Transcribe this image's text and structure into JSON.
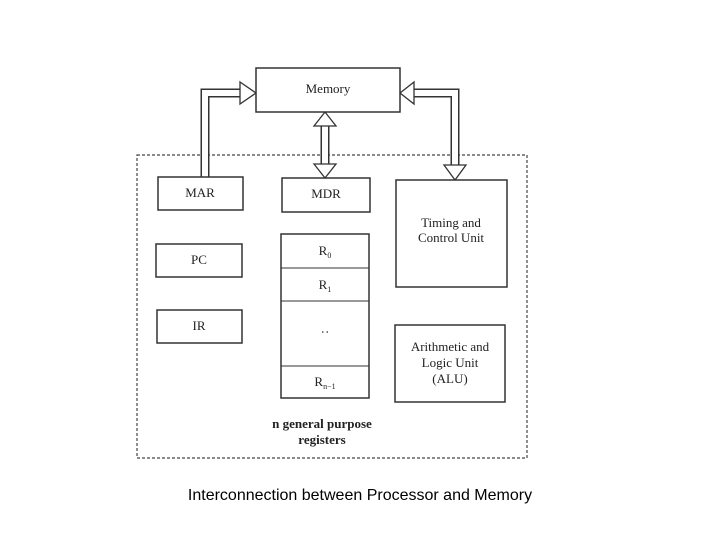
{
  "diagram": {
    "memory": "Memory",
    "mar": "MAR",
    "mdr": "MDR",
    "pc": "PC",
    "ir": "IR",
    "timing": [
      "Timing and",
      "Control Unit"
    ],
    "alu": [
      "Arithmetic and",
      "Logic Unit",
      "(ALU)"
    ],
    "registers": [
      {
        "name": "R",
        "sub": "0"
      },
      {
        "name": "R",
        "sub": "1"
      },
      {
        "name": ":"
      },
      {
        "name": "R",
        "sub": "n−1"
      }
    ],
    "registers_label": [
      "n general purpose",
      "registers"
    ]
  },
  "caption": "Interconnection between Processor and Memory"
}
